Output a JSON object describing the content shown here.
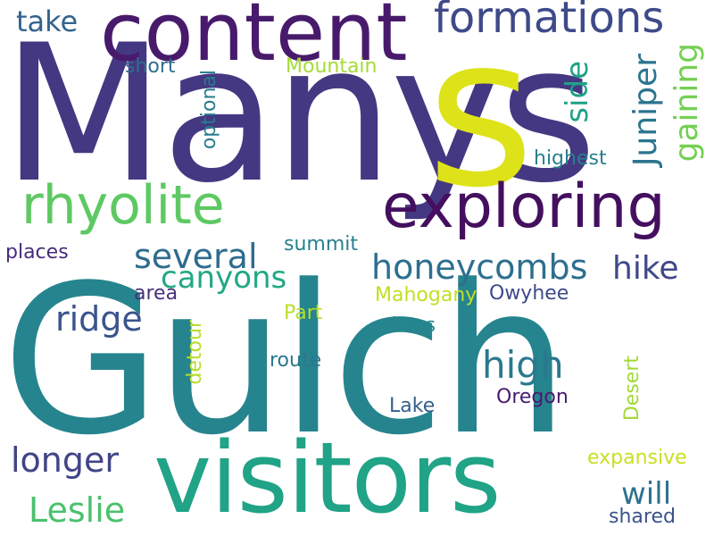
{
  "words": [
    {
      "id": "gulch",
      "text": "Gulch",
      "color": "#26848e"
    },
    {
      "id": "manys",
      "text": "Manys",
      "color": "#453882"
    },
    {
      "id": "s",
      "text": "s",
      "color": "#dde318"
    },
    {
      "id": "visitors",
      "text": "visitors",
      "color": "#20a386"
    },
    {
      "id": "content",
      "text": "content",
      "color": "#481a6c"
    },
    {
      "id": "exploring",
      "text": "exploring",
      "color": "#440f5f"
    },
    {
      "id": "rhyolite",
      "text": "rhyolite",
      "color": "#5ec962"
    },
    {
      "id": "formations",
      "text": "formations",
      "color": "#3e4a89"
    },
    {
      "id": "honeycombs",
      "text": "honeycombs",
      "color": "#2d6f8e"
    },
    {
      "id": "several",
      "text": "several",
      "color": "#2e6c8e"
    },
    {
      "id": "canyons",
      "text": "canyons",
      "color": "#22a884"
    },
    {
      "id": "ridge",
      "text": "ridge",
      "color": "#3a548c"
    },
    {
      "id": "high",
      "text": "high",
      "color": "#2a788e"
    },
    {
      "id": "hike",
      "text": "hike",
      "color": "#3f4889"
    },
    {
      "id": "longer",
      "text": "longer",
      "color": "#414487"
    },
    {
      "id": "leslie",
      "text": "Leslie",
      "color": "#4ac16d"
    },
    {
      "id": "juniper",
      "text": "Juniper",
      "color": "#2b748e"
    },
    {
      "id": "gaining",
      "text": "gaining",
      "color": "#75d054"
    },
    {
      "id": "side",
      "text": "side",
      "color": "#1fa187"
    },
    {
      "id": "will",
      "text": "will",
      "color": "#2c728e"
    },
    {
      "id": "take",
      "text": "take",
      "color": "#33638d"
    },
    {
      "id": "short",
      "text": "short",
      "color": "#2f6c8e"
    },
    {
      "id": "mountain",
      "text": "Mountain",
      "color": "#a5db36"
    },
    {
      "id": "optional",
      "text": "optional",
      "color": "#287c8e"
    },
    {
      "id": "highest",
      "text": "highest",
      "color": "#277f8e"
    },
    {
      "id": "places",
      "text": "places",
      "color": "#472d7b"
    },
    {
      "id": "summit",
      "text": "summit",
      "color": "#27808e"
    },
    {
      "id": "area",
      "text": "area",
      "color": "#46307e"
    },
    {
      "id": "part",
      "text": "Part",
      "color": "#b8de29"
    },
    {
      "id": "mahogany",
      "text": "Mahogany",
      "color": "#c2df23"
    },
    {
      "id": "owyhee",
      "text": "Owyhee",
      "color": "#3e4989"
    },
    {
      "id": "views",
      "text": "views",
      "color": "#24878e"
    },
    {
      "id": "route",
      "text": "route",
      "color": "#2a778e"
    },
    {
      "id": "detour",
      "text": "detour",
      "color": "#b5de2b"
    },
    {
      "id": "desert",
      "text": "Desert",
      "color": "#a2da37"
    },
    {
      "id": "lake",
      "text": "Lake",
      "color": "#34608d"
    },
    {
      "id": "oregon",
      "text": "Oregon",
      "color": "#481b6d"
    },
    {
      "id": "expansive",
      "text": "expansive",
      "color": "#c8e020"
    },
    {
      "id": "shared",
      "text": "shared",
      "color": "#3b528b"
    }
  ]
}
